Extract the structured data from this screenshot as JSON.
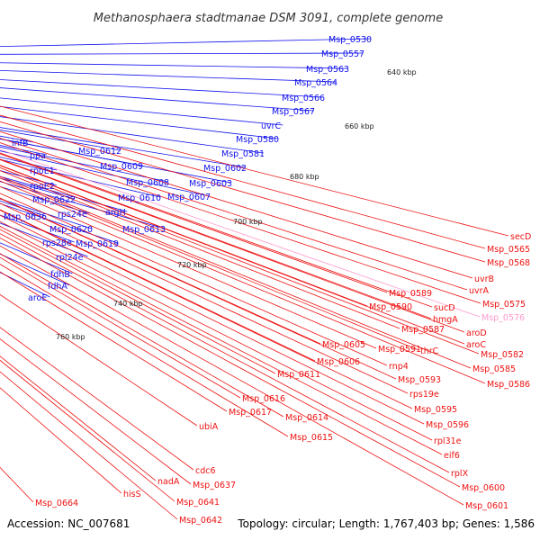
{
  "title": "Methanosphaera stadtmanae DSM 3091, complete genome",
  "footer": {
    "accession": "Accession: NC_007681",
    "summary": "Topology: circular; Length: 1,767,403 bp; Genes: 1,586"
  },
  "colors": {
    "forward": "#1111ee",
    "reverse": "#ee1111",
    "highlight": "#ff99cc",
    "backbone": "#888888",
    "tick": "#2e8b2e",
    "text": "#333333"
  },
  "kbp_ticks": [
    "640 kbp",
    "660 kbp",
    "680 kbp",
    "700 kbp",
    "720 kbp",
    "740 kbp",
    "760 kbp"
  ],
  "blue_labels": [
    "Msp_0530",
    "Msp_0557",
    "Msp_0563",
    "Msp_0564",
    "Msp_0566",
    "Msp_0567",
    "uvrC",
    "Msp_0580",
    "Msp_0581",
    "Msp_0602",
    "Msp_0603",
    "Msp_0612",
    "Msp_0609",
    "Msp_0608",
    "Msp_0610",
    "Msp_0607",
    "argH",
    "Msp_0613",
    "infB",
    "ppa",
    "rpoE1",
    "rpoE2",
    "Msp_0622",
    "Msp_0636",
    "rps24e",
    "Msp_0620",
    "rps28e",
    "Msp_0619",
    "rpl24e",
    "fdhB",
    "fdhA",
    "aroE"
  ],
  "red_labels": [
    "secD",
    "Msp_0565",
    "Msp_0568",
    "uvrB",
    "uvrA",
    "Msp_0575",
    "Msp_0589",
    "Msp_0590",
    "sucD",
    "hmgA",
    "Msp_0587",
    "Msp_0576",
    "aroD",
    "aroC",
    "Msp_0582",
    "thrC",
    "Msp_0585",
    "Msp_0586",
    "Msp_0605",
    "Msp_0591",
    "Msp_0606",
    "rnp4",
    "Msp_0593",
    "rps19e",
    "Msp_0595",
    "Msp_0596",
    "rpl31e",
    "eif6",
    "rplX",
    "Msp_0600",
    "Msp_0601",
    "Msp_0611",
    "Msp_0616",
    "Msp_0617",
    "Msp_0614",
    "Msp_0615",
    "ubiA",
    "cdc6",
    "Msp_0637",
    "nadA",
    "Msp_0641",
    "hisS",
    "Msp_0642",
    "Msp_0664"
  ]
}
